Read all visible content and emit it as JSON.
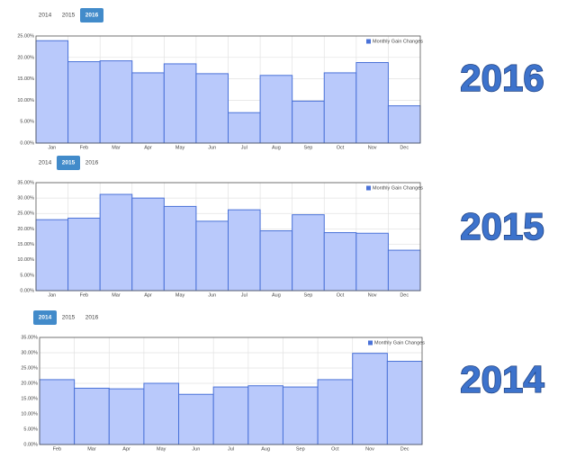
{
  "panels": [
    {
      "tabs": [
        "2014",
        "2015",
        "2016"
      ],
      "active_tab": 2,
      "label": "2016"
    },
    {
      "tabs": [
        "2014",
        "2015",
        "2016"
      ],
      "active_tab": 1,
      "label": "2015"
    },
    {
      "tabs": [
        "2014",
        "2015",
        "2016"
      ],
      "active_tab": 0,
      "label": "2014"
    }
  ],
  "chart_data": [
    {
      "type": "bar",
      "legend": "top-right",
      "grid": true,
      "categories": [
        "Jan",
        "Feb",
        "Mar",
        "Apr",
        "May",
        "Jun",
        "Jul",
        "Aug",
        "Sep",
        "Oct",
        "Nov",
        "Dec"
      ],
      "series": [
        {
          "name": "Monthly Gain Changes",
          "color": "#b9c9fb",
          "values": [
            23.9,
            19,
            19.2,
            16.4,
            18.5,
            16.2,
            7.1,
            15.8,
            9.8,
            16.4,
            18.8,
            8.7
          ]
        }
      ],
      "ylim": [
        0,
        25
      ],
      "yticks": [
        {
          "value": 0,
          "label": "0.00%"
        },
        {
          "value": 5,
          "label": "5.00%"
        },
        {
          "value": 10,
          "label": "10.00%"
        },
        {
          "value": 15,
          "label": "15.00%"
        },
        {
          "value": 20,
          "label": "20.00%"
        },
        {
          "value": 25,
          "label": "25.00%"
        }
      ]
    },
    {
      "type": "bar",
      "legend": "top-right",
      "grid": true,
      "categories": [
        "Jan",
        "Feb",
        "Mar",
        "Apr",
        "May",
        "Jun",
        "Jul",
        "Aug",
        "Sep",
        "Oct",
        "Nov",
        "Dec"
      ],
      "series": [
        {
          "name": "Monthly Gain Changes",
          "color": "#b9c9fb",
          "values": [
            23,
            23.5,
            31.2,
            30,
            27.3,
            22.5,
            26.2,
            19.4,
            24.6,
            18.8,
            18.6,
            13.1
          ]
        }
      ],
      "ylim": [
        0,
        35
      ],
      "yticks": [
        {
          "value": 0,
          "label": "0.00%"
        },
        {
          "value": 5,
          "label": "5.00%"
        },
        {
          "value": 10,
          "label": "10.00%"
        },
        {
          "value": 15,
          "label": "15.00%"
        },
        {
          "value": 20,
          "label": "20.00%"
        },
        {
          "value": 25,
          "label": "25.00%"
        },
        {
          "value": 30,
          "label": "30.00%"
        },
        {
          "value": 35,
          "label": "35.00%"
        }
      ]
    },
    {
      "type": "bar",
      "legend": "top-right",
      "grid": true,
      "categories": [
        "Feb",
        "Mar",
        "Apr",
        "May",
        "Jun",
        "Jul",
        "Aug",
        "Sep",
        "Oct",
        "Nov",
        "Dec"
      ],
      "series": [
        {
          "name": "Monthly Gain Changes",
          "color": "#b9c9fb",
          "values": [
            21.2,
            18.4,
            18.2,
            20,
            16.4,
            18.8,
            19.2,
            18.8,
            21.2,
            29.8,
            27.2
          ]
        }
      ],
      "ylim": [
        0,
        35
      ],
      "yticks": [
        {
          "value": 0,
          "label": "0.00%"
        },
        {
          "value": 5,
          "label": "5.00%"
        },
        {
          "value": 10,
          "label": "10.00%"
        },
        {
          "value": 15,
          "label": "15.00%"
        },
        {
          "value": 20,
          "label": "20.00%"
        },
        {
          "value": 25,
          "label": "25.00%"
        },
        {
          "value": 30,
          "label": "30.00%"
        },
        {
          "value": 35,
          "label": "35.00%"
        }
      ]
    }
  ]
}
